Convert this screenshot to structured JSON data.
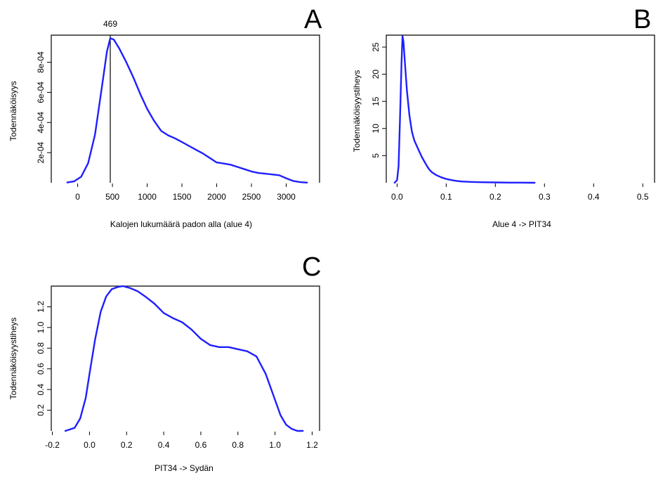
{
  "chart_data": [
    {
      "id": "A",
      "type": "line",
      "panel_letter": "A",
      "xlabel": "Kalojen lukumäärä padon alla (alue 4)",
      "ylabel": "Todennäköisyys",
      "xticks": [
        0,
        500,
        1000,
        1500,
        2000,
        2500,
        3000
      ],
      "xtick_labels": [
        "0",
        "500",
        "1000",
        "1500",
        "2000",
        "2500",
        "3000"
      ],
      "yticks": [
        0.0002,
        0.0004,
        0.0006,
        0.0008
      ],
      "ytick_labels": [
        "2e-04",
        "4e-04",
        "6e-04",
        "8e-04"
      ],
      "xlim": [
        -380,
        3480
      ],
      "ylim": [
        0,
        0.00098
      ],
      "vline": {
        "x": 469,
        "label": "469"
      },
      "series": [
        {
          "color": "#1f1fff",
          "x": [
            -150,
            -50,
            50,
            150,
            250,
            350,
            420,
            469,
            520,
            600,
            700,
            800,
            900,
            1000,
            1100,
            1200,
            1300,
            1400,
            1500,
            1600,
            1700,
            1800,
            1900,
            2000,
            2100,
            2200,
            2300,
            2400,
            2500,
            2600,
            2700,
            2800,
            2900,
            3000,
            3100,
            3200,
            3300
          ],
          "y": [
            2e-06,
            1e-05,
            4e-05,
            0.00013,
            0.00032,
            0.00064,
            0.00087,
            0.00096,
            0.00095,
            0.00089,
            0.0008,
            0.0007,
            0.00059,
            0.00049,
            0.00041,
            0.000345,
            0.000315,
            0.000295,
            0.00027,
            0.000245,
            0.00022,
            0.000195,
            0.000165,
            0.000135,
            0.000128,
            0.00012,
            0.000105,
            9e-05,
            7.5e-05,
            6.5e-05,
            6e-05,
            5.5e-05,
            5e-05,
            3e-05,
            1.2e-05,
            4e-06,
            1e-06
          ]
        }
      ]
    },
    {
      "id": "B",
      "type": "line",
      "panel_letter": "B",
      "xlabel": "Alue 4 -> PIT34",
      "ylabel": "Todennäköisyystiheys",
      "xticks": [
        0.0,
        0.1,
        0.2,
        0.3,
        0.4,
        0.5
      ],
      "xtick_labels": [
        "0.0",
        "0.1",
        "0.2",
        "0.3",
        "0.4",
        "0.5"
      ],
      "yticks": [
        5,
        10,
        15,
        20,
        25
      ],
      "ytick_labels": [
        "5",
        "10",
        "15",
        "20",
        "25"
      ],
      "xlim": [
        -0.022,
        0.524
      ],
      "ylim": [
        0,
        27.2
      ],
      "series": [
        {
          "color": "#1f1fff",
          "x": [
            -0.005,
            0.0,
            0.003,
            0.006,
            0.009,
            0.011,
            0.013,
            0.016,
            0.02,
            0.025,
            0.03,
            0.035,
            0.04,
            0.045,
            0.05,
            0.055,
            0.06,
            0.065,
            0.07,
            0.08,
            0.09,
            0.1,
            0.11,
            0.12,
            0.13,
            0.15,
            0.17,
            0.2,
            0.23,
            0.25,
            0.28
          ],
          "y": [
            0.0,
            0.5,
            3.0,
            12.0,
            22.0,
            27.0,
            26.0,
            22.0,
            17.0,
            12.5,
            9.5,
            7.8,
            6.8,
            5.8,
            4.8,
            4.0,
            3.2,
            2.5,
            2.0,
            1.4,
            1.0,
            0.7,
            0.5,
            0.35,
            0.25,
            0.15,
            0.1,
            0.06,
            0.03,
            0.02,
            0.0
          ]
        }
      ]
    },
    {
      "id": "C",
      "type": "line",
      "panel_letter": "C",
      "xlabel": "PIT34 -> Sydän",
      "ylabel": "Todennäköisyystiheys",
      "xticks": [
        -0.2,
        0.0,
        0.2,
        0.4,
        0.6,
        0.8,
        1.0,
        1.2
      ],
      "xtick_labels": [
        "-0.2",
        "0.0",
        "0.2",
        "0.4",
        "0.6",
        "0.8",
        "1.0",
        "1.2"
      ],
      "yticks": [
        0.2,
        0.4,
        0.6,
        0.8,
        1.0,
        1.2
      ],
      "ytick_labels": [
        "0.2",
        "0.4",
        "0.6",
        "0.8",
        "1.0",
        "1.2"
      ],
      "xlim": [
        -0.206,
        1.24
      ],
      "ylim": [
        0,
        1.4
      ],
      "series": [
        {
          "color": "#1f1fff",
          "x": [
            -0.13,
            -0.08,
            -0.05,
            -0.02,
            0.0,
            0.03,
            0.06,
            0.09,
            0.12,
            0.15,
            0.18,
            0.22,
            0.26,
            0.3,
            0.35,
            0.4,
            0.45,
            0.5,
            0.55,
            0.6,
            0.65,
            0.7,
            0.75,
            0.8,
            0.85,
            0.9,
            0.95,
            1.0,
            1.03,
            1.06,
            1.09,
            1.12,
            1.15
          ],
          "y": [
            0.0,
            0.03,
            0.12,
            0.32,
            0.55,
            0.88,
            1.15,
            1.3,
            1.37,
            1.39,
            1.4,
            1.38,
            1.35,
            1.3,
            1.23,
            1.14,
            1.09,
            1.05,
            0.98,
            0.89,
            0.83,
            0.81,
            0.81,
            0.79,
            0.77,
            0.72,
            0.55,
            0.3,
            0.15,
            0.06,
            0.02,
            0.0,
            0.0
          ]
        }
      ]
    }
  ]
}
